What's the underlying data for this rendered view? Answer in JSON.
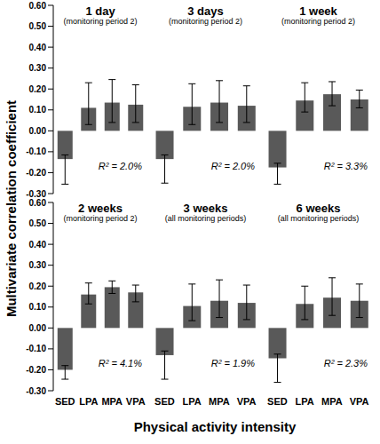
{
  "ylabel": "Multivariate correlation coefficient",
  "xlabel": "Physical activity intensity",
  "chart_data": [
    {
      "type": "bar",
      "title": "1 day",
      "subtitle": "(monitoring period 2)",
      "annotation": "R² = 2.0%",
      "categories": [
        "SED",
        "LPA",
        "MPA",
        "VPA"
      ],
      "values": [
        -0.135,
        0.11,
        0.135,
        0.125
      ],
      "ci_low": [
        -0.255,
        0.03,
        0.04,
        0.04
      ],
      "ci_high": [
        -0.115,
        0.23,
        0.245,
        0.22
      ],
      "color": "#595959",
      "ylim": [
        -0.3,
        0.6
      ],
      "yticks": [
        {
          "value": 0.6,
          "label": "0.60"
        },
        {
          "value": 0.5,
          "label": "0.50"
        },
        {
          "value": 0.4,
          "label": "0.40"
        },
        {
          "value": 0.3,
          "label": "0.30"
        },
        {
          "value": 0.2,
          "label": "0.20"
        },
        {
          "value": 0.1,
          "label": "0.10"
        },
        {
          "value": 0,
          "label": "0.00"
        },
        {
          "value": -0.1,
          "label": "-0.10"
        },
        {
          "value": -0.2,
          "label": "-0.20"
        },
        {
          "value": -0.3,
          "label": "-0.30"
        }
      ],
      "tick_labels": "y"
    },
    {
      "type": "bar",
      "title": "3 days",
      "subtitle": "(monitoring period 2)",
      "annotation": "R² = 2.0%",
      "categories": [
        "SED",
        "LPA",
        "MPA",
        "VPA"
      ],
      "values": [
        -0.135,
        0.115,
        0.135,
        0.12
      ],
      "ci_low": [
        -0.25,
        0.03,
        0.04,
        0.04
      ],
      "ci_high": [
        -0.115,
        0.225,
        0.24,
        0.215
      ],
      "color": "#595959",
      "ylim": [
        -0.3,
        0.6
      ],
      "yticks": [
        {
          "value": 0.6,
          "label": "0.60"
        },
        {
          "value": 0.5,
          "label": "0.50"
        },
        {
          "value": 0.4,
          "label": "0.40"
        },
        {
          "value": 0.3,
          "label": "0.30"
        },
        {
          "value": 0.2,
          "label": "0.20"
        },
        {
          "value": 0.1,
          "label": "0.10"
        },
        {
          "value": 0,
          "label": "0.00"
        },
        {
          "value": -0.1,
          "label": "-0.10"
        },
        {
          "value": -0.2,
          "label": "-0.20"
        },
        {
          "value": -0.3,
          "label": "-0.30"
        }
      ],
      "tick_labels": false
    },
    {
      "type": "bar",
      "title": "1 week",
      "subtitle": "(monitoring period 2)",
      "annotation": "R² = 3.3%",
      "categories": [
        "SED",
        "LPA",
        "MPA",
        "VPA"
      ],
      "values": [
        -0.175,
        0.145,
        0.175,
        0.15
      ],
      "ci_low": [
        -0.255,
        0.09,
        0.12,
        0.11
      ],
      "ci_high": [
        -0.155,
        0.23,
        0.235,
        0.195
      ],
      "color": "#595959",
      "ylim": [
        -0.3,
        0.6
      ],
      "yticks": [
        {
          "value": 0.6,
          "label": "0.60"
        },
        {
          "value": 0.5,
          "label": "0.50"
        },
        {
          "value": 0.4,
          "label": "0.40"
        },
        {
          "value": 0.3,
          "label": "0.30"
        },
        {
          "value": 0.2,
          "label": "0.20"
        },
        {
          "value": 0.1,
          "label": "0.10"
        },
        {
          "value": 0,
          "label": "0.00"
        },
        {
          "value": -0.1,
          "label": "-0.10"
        },
        {
          "value": -0.2,
          "label": "-0.20"
        },
        {
          "value": -0.3,
          "label": "-0.30"
        }
      ],
      "tick_labels": false
    },
    {
      "type": "bar",
      "title": "2 weeks",
      "subtitle": "(monitoring period 2)",
      "annotation": "R² = 4.1%",
      "categories": [
        "SED",
        "LPA",
        "MPA",
        "VPA"
      ],
      "values": [
        -0.2,
        0.16,
        0.195,
        0.17
      ],
      "ci_low": [
        -0.245,
        0.115,
        0.165,
        0.125
      ],
      "ci_high": [
        -0.18,
        0.215,
        0.225,
        0.205
      ],
      "color": "#595959",
      "ylim": [
        -0.3,
        0.6
      ],
      "yticks": [
        {
          "value": 0.6,
          "label": "0.60"
        },
        {
          "value": 0.5,
          "label": "0.50"
        },
        {
          "value": 0.4,
          "label": "0.40"
        },
        {
          "value": 0.3,
          "label": "0.30"
        },
        {
          "value": 0.2,
          "label": "0.20"
        },
        {
          "value": 0.1,
          "label": "0.10"
        },
        {
          "value": 0,
          "label": "0.00"
        },
        {
          "value": -0.1,
          "label": "-0.10"
        },
        {
          "value": -0.2,
          "label": "-0.20"
        },
        {
          "value": -0.3,
          "label": "-0.30"
        }
      ],
      "tick_labels": true
    },
    {
      "type": "bar",
      "title": "3 weeks",
      "subtitle": "(all monitoring periods)",
      "annotation": "R² = 1.9%",
      "categories": [
        "SED",
        "LPA",
        "MPA",
        "VPA"
      ],
      "values": [
        -0.13,
        0.105,
        0.13,
        0.12
      ],
      "ci_low": [
        -0.245,
        0.035,
        0.05,
        0.04
      ],
      "ci_high": [
        -0.11,
        0.21,
        0.23,
        0.205
      ],
      "color": "#595959",
      "ylim": [
        -0.3,
        0.6
      ],
      "yticks": [
        {
          "value": 0.6,
          "label": "0.60"
        },
        {
          "value": 0.5,
          "label": "0.50"
        },
        {
          "value": 0.4,
          "label": "0.40"
        },
        {
          "value": 0.3,
          "label": "0.30"
        },
        {
          "value": 0.2,
          "label": "0.20"
        },
        {
          "value": 0.1,
          "label": "0.10"
        },
        {
          "value": 0,
          "label": "0.00"
        },
        {
          "value": -0.1,
          "label": "-0.10"
        },
        {
          "value": -0.2,
          "label": "-0.20"
        },
        {
          "value": -0.3,
          "label": "-0.30"
        }
      ],
      "tick_labels": "x"
    },
    {
      "type": "bar",
      "title": "6 weeks",
      "subtitle": "(all monitoring periods)",
      "annotation": "R² = 2.3%",
      "categories": [
        "SED",
        "LPA",
        "MPA",
        "VPA"
      ],
      "values": [
        -0.145,
        0.115,
        0.145,
        0.13
      ],
      "ci_low": [
        -0.26,
        0.04,
        0.06,
        0.05
      ],
      "ci_high": [
        -0.125,
        0.2,
        0.24,
        0.21
      ],
      "color": "#595959",
      "ylim": [
        -0.3,
        0.6
      ],
      "yticks": [
        {
          "value": 0.6,
          "label": "0.60"
        },
        {
          "value": 0.5,
          "label": "0.50"
        },
        {
          "value": 0.4,
          "label": "0.40"
        },
        {
          "value": 0.3,
          "label": "0.30"
        },
        {
          "value": 0.2,
          "label": "0.20"
        },
        {
          "value": 0.1,
          "label": "0.10"
        },
        {
          "value": 0,
          "label": "0.00"
        },
        {
          "value": -0.1,
          "label": "-0.10"
        },
        {
          "value": -0.2,
          "label": "-0.20"
        },
        {
          "value": -0.3,
          "label": "-0.30"
        }
      ],
      "tick_labels": "x"
    }
  ]
}
